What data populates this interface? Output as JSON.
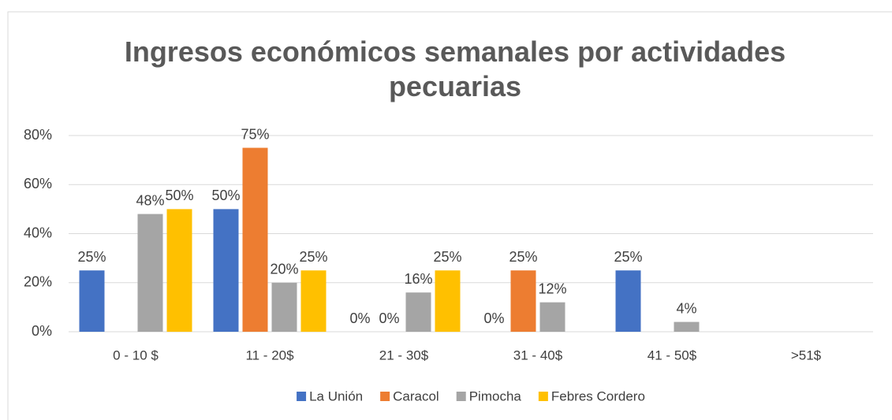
{
  "chart_data": {
    "type": "bar",
    "title": "Ingresos económicos semanales por actividades pecuarias",
    "categories": [
      "0 -  10 $",
      "11 - 20$",
      "21 - 30$",
      "31 -  40$",
      "41 - 50$",
      ">51$"
    ],
    "series": [
      {
        "name": "La Unión",
        "color": "#4472c4",
        "values": [
          25,
          50,
          0,
          0,
          25,
          null
        ],
        "value_labels": [
          "25%",
          "50%",
          "0%",
          "0%",
          "25%",
          null
        ]
      },
      {
        "name": "Caracol",
        "color": "#ed7d31",
        "values": [
          null,
          75,
          0,
          25,
          null,
          null
        ],
        "value_labels": [
          null,
          "75%",
          "0%",
          "25%",
          null,
          null
        ]
      },
      {
        "name": "Pimocha",
        "color": "#a5a5a5",
        "values": [
          48,
          20,
          16,
          12,
          4,
          null
        ],
        "value_labels": [
          "48%",
          "20%",
          "16%",
          "12%",
          "4%",
          null
        ]
      },
      {
        "name": "Febres Cordero",
        "color": "#ffc000",
        "values": [
          50,
          25,
          25,
          null,
          null,
          null
        ],
        "value_labels": [
          "50%",
          "25%",
          "25%",
          null,
          null,
          null
        ]
      }
    ],
    "ylim": [
      0,
      80
    ],
    "yticks": [
      {
        "value": 0,
        "label": "0%"
      },
      {
        "value": 20,
        "label": "20%"
      },
      {
        "value": 40,
        "label": "40%"
      },
      {
        "value": 60,
        "label": "60%"
      },
      {
        "value": 80,
        "label": "80%"
      }
    ],
    "grid": true,
    "legend": "bottom"
  }
}
